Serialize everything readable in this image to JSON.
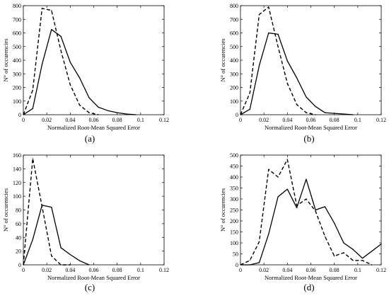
{
  "chart_data": [
    {
      "type": "line",
      "panel_label": "(a)",
      "xlabel": "Normalized Root-Mean Squared Error",
      "ylabel": "N° of occurencies",
      "xlim": [
        0,
        0.12
      ],
      "ylim": [
        0,
        800
      ],
      "xticks": [
        0,
        0.02,
        0.04,
        0.06,
        0.08,
        0.1,
        0.12
      ],
      "xtick_labels": [
        "0",
        "0.02",
        "0.04",
        "0.06",
        "0.08",
        "0.1",
        "0.12"
      ],
      "yticks": [
        0,
        100,
        200,
        300,
        400,
        500,
        600,
        700,
        800
      ],
      "ytick_labels": [
        "0",
        "100",
        "200",
        "300",
        "400",
        "500",
        "600",
        "700",
        "800"
      ],
      "grid": false,
      "series": [
        {
          "style": "dashed",
          "x": [
            0,
            0.008,
            0.016,
            0.024,
            0.032,
            0.04,
            0.048,
            0.056,
            0.064
          ],
          "y": [
            0,
            180,
            780,
            765,
            470,
            220,
            70,
            15,
            0
          ]
        },
        {
          "style": "solid",
          "x": [
            0,
            0.008,
            0.016,
            0.024,
            0.032,
            0.04,
            0.048,
            0.056,
            0.064,
            0.072,
            0.08,
            0.088,
            0.096
          ],
          "y": [
            0,
            45,
            370,
            625,
            575,
            385,
            270,
            125,
            55,
            30,
            15,
            5,
            0
          ]
        }
      ]
    },
    {
      "type": "line",
      "panel_label": "(b)",
      "xlabel": "Normalized Root-Mean Squared Error",
      "ylabel": "N° of occurencies",
      "xlim": [
        0,
        0.12
      ],
      "ylim": [
        0,
        800
      ],
      "xticks": [
        0,
        0.02,
        0.04,
        0.06,
        0.08,
        0.1,
        0.12
      ],
      "xtick_labels": [
        "0",
        "0.02",
        "0.04",
        "0.06",
        "0.08",
        "0.1",
        "0.12"
      ],
      "yticks": [
        0,
        100,
        200,
        300,
        400,
        500,
        600,
        700,
        800
      ],
      "ytick_labels": [
        "0",
        "100",
        "200",
        "300",
        "400",
        "500",
        "600",
        "700",
        "800"
      ],
      "grid": false,
      "series": [
        {
          "style": "dashed",
          "x": [
            0,
            0.008,
            0.016,
            0.024,
            0.032,
            0.04,
            0.048,
            0.056,
            0.064
          ],
          "y": [
            0,
            160,
            735,
            790,
            500,
            230,
            75,
            15,
            0
          ]
        },
        {
          "style": "solid",
          "x": [
            0,
            0.008,
            0.016,
            0.024,
            0.032,
            0.04,
            0.048,
            0.056,
            0.064,
            0.072,
            0.08,
            0.088,
            0.096
          ],
          "y": [
            0,
            40,
            360,
            600,
            590,
            395,
            270,
            130,
            60,
            15,
            10,
            5,
            0
          ]
        }
      ]
    },
    {
      "type": "line",
      "panel_label": "(c)",
      "xlabel": "Normalized Root-Mean Squared Error",
      "ylabel": "N° of occurencies",
      "xlim": [
        0,
        0.12
      ],
      "ylim": [
        0,
        160
      ],
      "xticks": [
        0,
        0.02,
        0.04,
        0.06,
        0.08,
        0.1,
        0.12
      ],
      "xtick_labels": [
        "0",
        "0.02",
        "0.04",
        "0.06",
        "0.08",
        "0.1",
        "0.12"
      ],
      "yticks": [
        0,
        20,
        40,
        60,
        80,
        100,
        120,
        140,
        160
      ],
      "ytick_labels": [
        "0",
        "20",
        "40",
        "60",
        "80",
        "100",
        "120",
        "140",
        "160"
      ],
      "grid": false,
      "series": [
        {
          "style": "dashed",
          "x": [
            0,
            0.008,
            0.016,
            0.024,
            0.032,
            0.04
          ],
          "y": [
            0,
            155,
            85,
            13,
            0,
            0
          ]
        },
        {
          "style": "solid",
          "x": [
            0,
            0.008,
            0.016,
            0.024,
            0.032,
            0.04,
            0.048,
            0.056
          ],
          "y": [
            0,
            37,
            87,
            84,
            25,
            15,
            6,
            0
          ]
        }
      ]
    },
    {
      "type": "line",
      "panel_label": "(d)",
      "xlabel": "Normalized Root-Mean Squared Error",
      "ylabel": "N° of occurencies",
      "xlim": [
        0,
        0.12
      ],
      "ylim": [
        0,
        500
      ],
      "xticks": [
        0,
        0.02,
        0.04,
        0.06,
        0.08,
        0.1,
        0.12
      ],
      "xtick_labels": [
        "0",
        "0.02",
        "0.04",
        "0.06",
        "0.08",
        "0.1",
        "0.12"
      ],
      "yticks": [
        0,
        50,
        100,
        150,
        200,
        250,
        300,
        350,
        400,
        450,
        500
      ],
      "ytick_labels": [
        "0",
        "50",
        "100",
        "150",
        "200",
        "250",
        "300",
        "350",
        "400",
        "450",
        "500"
      ],
      "grid": false,
      "series": [
        {
          "style": "dashed",
          "x": [
            0,
            0.008,
            0.016,
            0.024,
            0.032,
            0.04,
            0.048,
            0.056,
            0.064,
            0.072,
            0.08,
            0.088,
            0.096,
            0.104,
            0.112
          ],
          "y": [
            0,
            20,
            105,
            435,
            400,
            480,
            270,
            300,
            245,
            130,
            40,
            55,
            20,
            20,
            0
          ]
        },
        {
          "style": "solid",
          "x": [
            0,
            0.008,
            0.016,
            0.024,
            0.032,
            0.04,
            0.048,
            0.056,
            0.064,
            0.072,
            0.08,
            0.088,
            0.096,
            0.104,
            0.12
          ],
          "y": [
            0,
            0,
            10,
            140,
            310,
            345,
            260,
            390,
            250,
            265,
            190,
            100,
            70,
            30,
            95
          ]
        }
      ]
    }
  ]
}
